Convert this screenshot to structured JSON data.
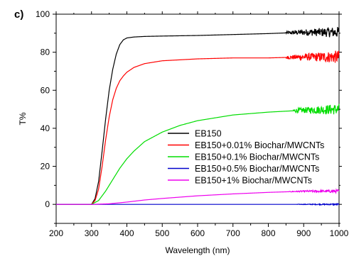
{
  "panel_label": "c)",
  "chart_data": {
    "type": "line",
    "title": "",
    "xlabel": "Wavelength (nm)",
    "ylabel": "T%",
    "xlim": [
      200,
      1000
    ],
    "ylim": [
      -10,
      100
    ],
    "x_ticks": [
      "200",
      "300",
      "400",
      "500",
      "600",
      "700",
      "800",
      "900",
      "1000"
    ],
    "y_ticks": [
      "0",
      "20",
      "40",
      "60",
      "80",
      "100"
    ],
    "legend_position": "center-right",
    "grid": false,
    "series": [
      {
        "name": "EB150",
        "color": "#000000",
        "noise_from": 850,
        "noise_amp": [
          0.8,
          3.0
        ],
        "x": [
          200,
          300,
          310,
          320,
          330,
          340,
          350,
          360,
          370,
          380,
          390,
          400,
          420,
          450,
          500,
          600,
          700,
          800,
          900,
          1000
        ],
        "y": [
          0,
          0,
          3,
          12,
          28,
          45,
          60,
          71,
          79,
          84,
          86.5,
          87.5,
          88,
          88.3,
          88.5,
          88.8,
          89.3,
          89.8,
          90.5,
          90.5
        ]
      },
      {
        "name": "EB150+0.01% Biochar/MWCNTs",
        "color": "#ff0000",
        "noise_from": 850,
        "noise_amp": [
          0.8,
          3.5
        ],
        "x": [
          200,
          300,
          310,
          320,
          330,
          340,
          350,
          360,
          370,
          380,
          390,
          400,
          420,
          450,
          500,
          600,
          700,
          800,
          900,
          1000
        ],
        "y": [
          0,
          0,
          2,
          8,
          20,
          34,
          46,
          55,
          61,
          65,
          67.5,
          69.5,
          72,
          74,
          75.5,
          76.5,
          77,
          77,
          77.5,
          77.5
        ]
      },
      {
        "name": "EB150+0.1% Biochar/MWCNTs",
        "color": "#00dd00",
        "noise_from": 870,
        "noise_amp": [
          1.0,
          3.0
        ],
        "x": [
          200,
          300,
          320,
          340,
          360,
          380,
          400,
          420,
          450,
          500,
          550,
          600,
          700,
          800,
          900,
          1000
        ],
        "y": [
          0,
          0,
          2,
          7,
          13,
          19,
          24,
          28,
          33,
          38,
          41.5,
          44,
          47,
          48.5,
          49.5,
          50
        ]
      },
      {
        "name": "EB150+0.5% Biochar/MWCNTs",
        "color": "#0000cc",
        "noise_from": 880,
        "noise_amp": [
          0.1,
          0.4
        ],
        "x": [
          200,
          300,
          400,
          600,
          800,
          1000
        ],
        "y": [
          0,
          0,
          0,
          0,
          0,
          0
        ]
      },
      {
        "name": "EB150+1% Biochar/MWCNTs",
        "color": "#ee00ee",
        "noise_from": 860,
        "noise_amp": [
          0.2,
          0.9
        ],
        "x": [
          200,
          300,
          350,
          400,
          450,
          500,
          600,
          700,
          800,
          900,
          1000
        ],
        "y": [
          0,
          0,
          0.3,
          1.2,
          2.3,
          3.1,
          4.5,
          5.5,
          6.3,
          6.9,
          6.9
        ]
      }
    ]
  }
}
